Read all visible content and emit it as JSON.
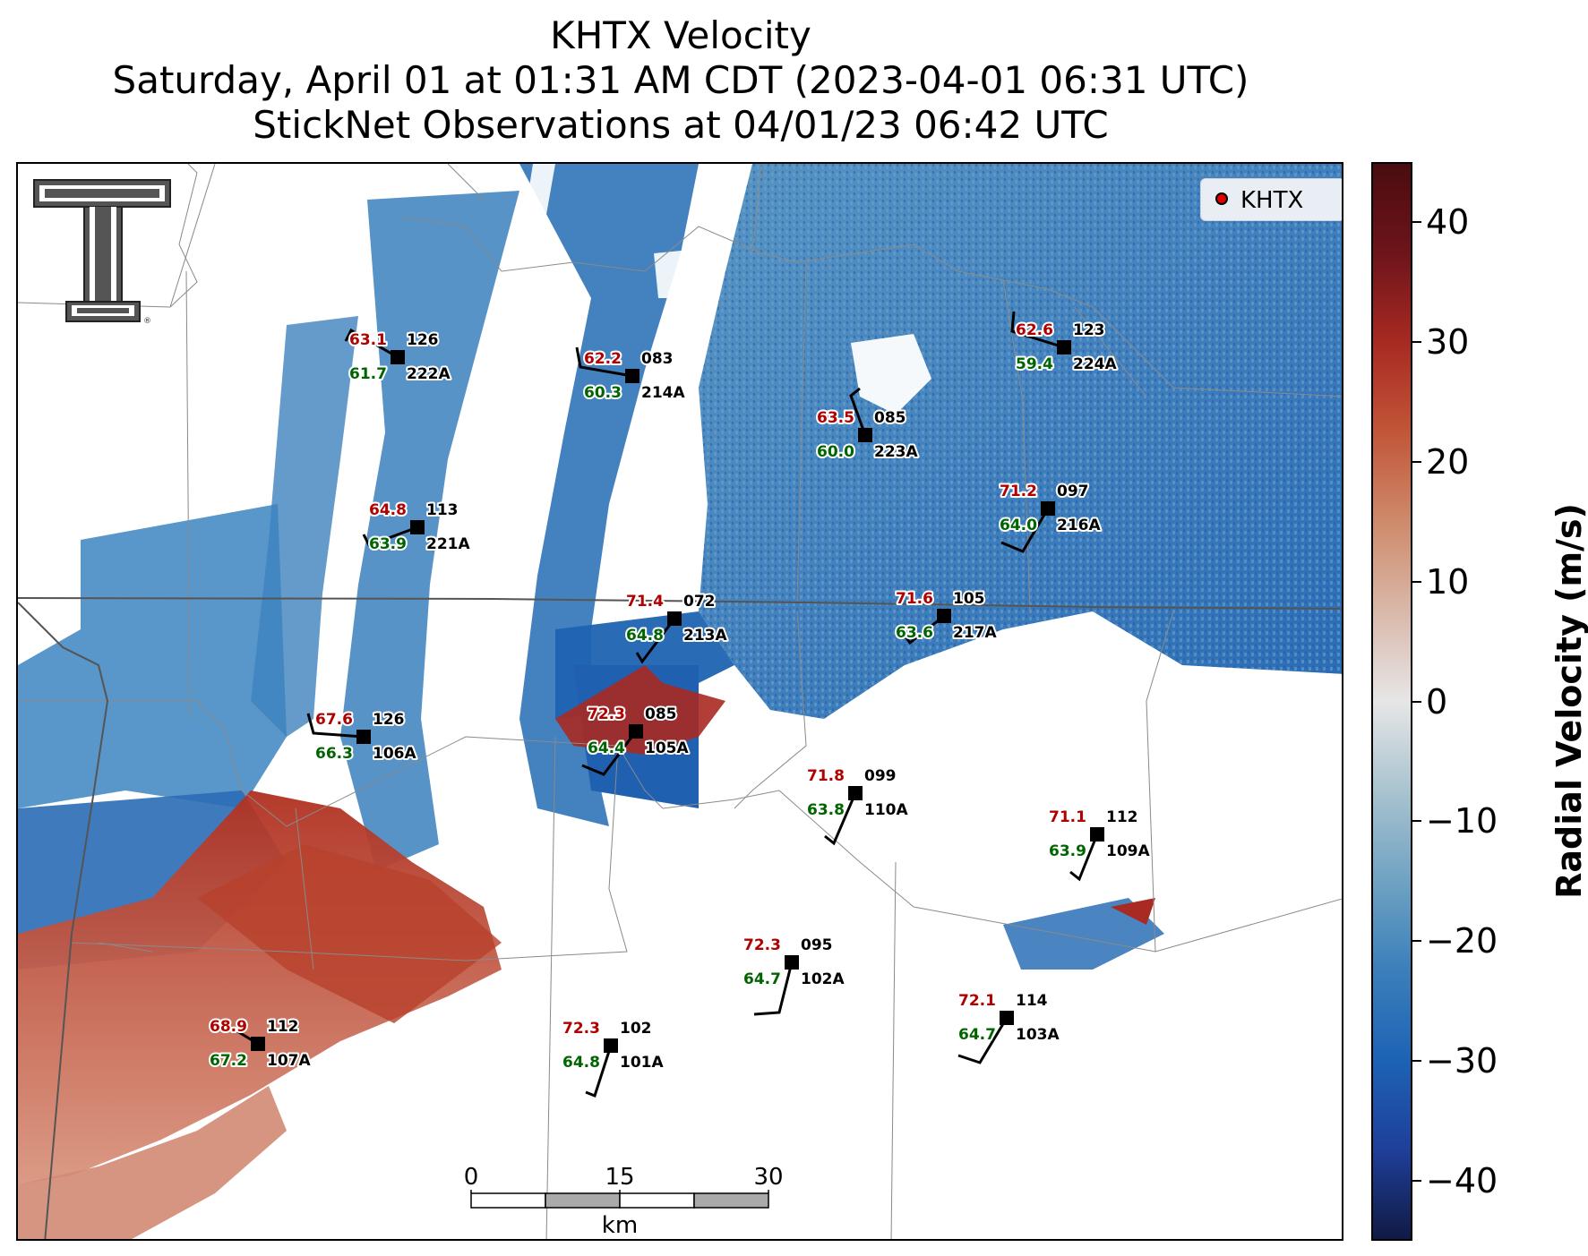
{
  "title": {
    "line1": "KHTX Velocity",
    "line2": "Saturday, April 01 at 01:31 AM CDT (2023-04-01 06:31 UTC)",
    "line3": "StickNet Observations at 04/01/23 06:42 UTC"
  },
  "legend": {
    "label": "KHTX",
    "marker_color": "#e00000"
  },
  "colorbar": {
    "label": "Radial Velocity (m/s)",
    "ticks": [
      "40",
      "30",
      "20",
      "10",
      "0",
      "−10",
      "−20",
      "−30",
      "−40"
    ],
    "range": [
      -45,
      45
    ],
    "colors": [
      "#111a45",
      "#1f3f9a",
      "#1d63b5",
      "#3b7fba",
      "#6fa3c2",
      "#a9c3cf",
      "#e6e6e6",
      "#d9b8aa",
      "#cf8a6c",
      "#c25638",
      "#a82a22",
      "#6e141a",
      "#4a0c10"
    ]
  },
  "scale_bar": {
    "ticks": [
      "0",
      "15",
      "30"
    ],
    "unit": "km"
  },
  "logo": {
    "name": "Texas Tech Double T",
    "mark": "®"
  },
  "stations": [
    {
      "id": "222A",
      "temp": "63.1",
      "dew": "61.7",
      "dir": "126"
    },
    {
      "id": "214A",
      "temp": "62.2",
      "dew": "60.3",
      "dir": "083"
    },
    {
      "id": "223A",
      "temp": "63.5",
      "dew": "60.0",
      "dir": "085"
    },
    {
      "id": "224A",
      "temp": "62.6",
      "dew": "59.4",
      "dir": "123"
    },
    {
      "id": "221A",
      "temp": "64.8",
      "dew": "63.9",
      "dir": "113"
    },
    {
      "id": "216A",
      "temp": "71.2",
      "dew": "64.0",
      "dir": "097"
    },
    {
      "id": "213A",
      "temp": "71.4",
      "dew": "64.8",
      "dir": "072"
    },
    {
      "id": "217A",
      "temp": "71.6",
      "dew": "63.6",
      "dir": "105"
    },
    {
      "id": "106A",
      "temp": "67.6",
      "dew": "66.3",
      "dir": "126"
    },
    {
      "id": "105A",
      "temp": "72.3",
      "dew": "64.4",
      "dir": "085"
    },
    {
      "id": "110A",
      "temp": "71.8",
      "dew": "63.8",
      "dir": "099"
    },
    {
      "id": "109A",
      "temp": "71.1",
      "dew": "63.9",
      "dir": "112"
    },
    {
      "id": "102A",
      "temp": "72.3",
      "dew": "64.7",
      "dir": "095"
    },
    {
      "id": "103A",
      "temp": "72.1",
      "dew": "64.7",
      "dir": "114"
    },
    {
      "id": "101A",
      "temp": "72.3",
      "dew": "64.8",
      "dir": "102"
    },
    {
      "id": "107A",
      "temp": "68.9",
      "dew": "67.2",
      "dir": "112"
    }
  ]
}
